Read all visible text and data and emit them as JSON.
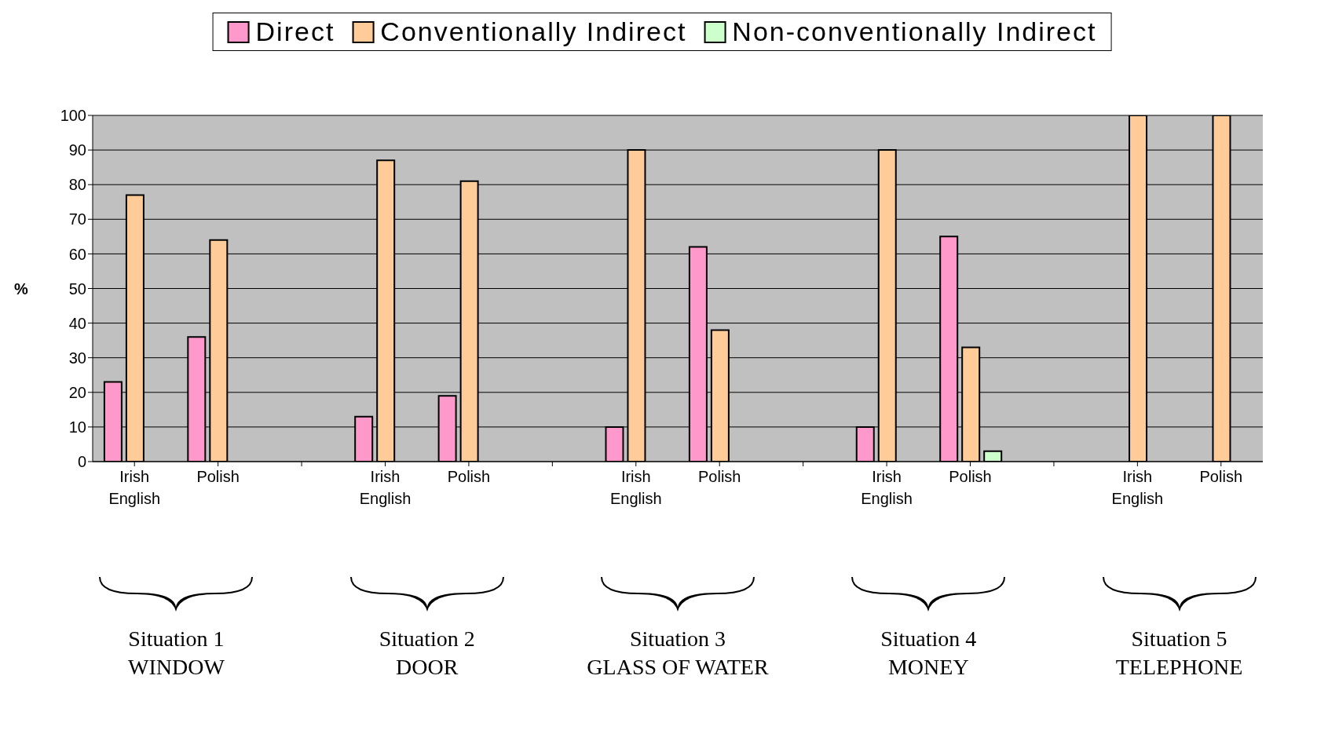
{
  "chart_data": {
    "type": "bar",
    "ylabel": "%",
    "categories": [
      "Irish English",
      "Polish",
      null,
      "Irish English",
      "Polish",
      null,
      "Irish English",
      "Polish",
      null,
      "Irish English",
      "Polish",
      null,
      "Irish English",
      "Polish"
    ],
    "series": [
      {
        "name": "Direct",
        "color": "#ff99cc",
        "values": [
          23,
          36,
          null,
          13,
          19,
          null,
          10,
          62,
          null,
          10,
          65,
          null,
          0,
          0
        ]
      },
      {
        "name": "Conventionally Indirect",
        "color": "#ffcc99",
        "values": [
          77,
          64,
          null,
          87,
          81,
          null,
          90,
          38,
          null,
          90,
          33,
          null,
          100,
          100
        ]
      },
      {
        "name": "Non-conventionally Indirect",
        "color": "#ccffcc",
        "values": [
          0,
          0,
          null,
          0,
          0,
          null,
          0,
          0,
          null,
          0,
          3,
          null,
          0,
          0
        ]
      }
    ],
    "ylim": [
      0,
      100
    ],
    "yticks": [
      0,
      10,
      20,
      30,
      40,
      50,
      60,
      70,
      80,
      90,
      100
    ],
    "grid": "y",
    "legend": "top",
    "annotations": [
      "Situation 1",
      "WINDOW",
      "Situation 2",
      "DOOR",
      "Situation 3",
      "GLASS OF WATER",
      "Situation 4",
      "MONEY",
      "Situation 5",
      "TELEPHONE"
    ]
  }
}
